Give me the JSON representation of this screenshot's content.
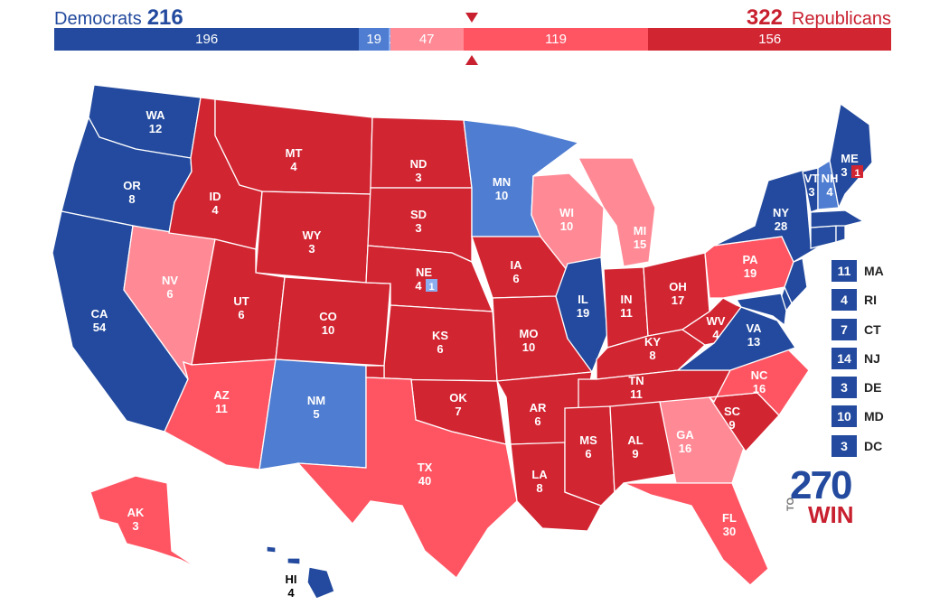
{
  "colors": {
    "safe_dem": "#234a9e",
    "likely_dem": "#4f7dd1",
    "lean_dem": "#8caeee",
    "lean_rep": "#ff8a96",
    "likely_rep": "#ff5563",
    "safe_rep": "#d22532"
  },
  "header": {
    "dem_label": "Democrats",
    "dem_total": "216",
    "rep_total": "322",
    "rep_label": "Republicans"
  },
  "bar": [
    {
      "label": "196",
      "value": 196,
      "rating": "safe_dem"
    },
    {
      "label": "19",
      "value": 19,
      "rating": "likely_dem"
    },
    {
      "label": "1",
      "value": 1,
      "rating": "lean_dem"
    },
    {
      "label": "47",
      "value": 47,
      "rating": "lean_rep"
    },
    {
      "label": "119",
      "value": 119,
      "rating": "likely_rep"
    },
    {
      "label": "156",
      "value": 156,
      "rating": "safe_rep"
    }
  ],
  "states": {
    "WA": {
      "abbr": "WA",
      "ev": "12",
      "rating": "safe_dem"
    },
    "OR": {
      "abbr": "OR",
      "ev": "8",
      "rating": "safe_dem"
    },
    "CA": {
      "abbr": "CA",
      "ev": "54",
      "rating": "safe_dem"
    },
    "NV": {
      "abbr": "NV",
      "ev": "6",
      "rating": "lean_rep"
    },
    "ID": {
      "abbr": "ID",
      "ev": "4",
      "rating": "safe_rep"
    },
    "MT": {
      "abbr": "MT",
      "ev": "4",
      "rating": "safe_rep"
    },
    "WY": {
      "abbr": "WY",
      "ev": "3",
      "rating": "safe_rep"
    },
    "UT": {
      "abbr": "UT",
      "ev": "6",
      "rating": "safe_rep"
    },
    "AZ": {
      "abbr": "AZ",
      "ev": "11",
      "rating": "likely_rep"
    },
    "CO": {
      "abbr": "CO",
      "ev": "10",
      "rating": "safe_rep"
    },
    "NM": {
      "abbr": "NM",
      "ev": "5",
      "rating": "likely_dem"
    },
    "ND": {
      "abbr": "ND",
      "ev": "3",
      "rating": "safe_rep"
    },
    "SD": {
      "abbr": "SD",
      "ev": "3",
      "rating": "safe_rep"
    },
    "NE": {
      "abbr": "NE",
      "ev": "4",
      "rating": "safe_rep",
      "district": "1"
    },
    "KS": {
      "abbr": "KS",
      "ev": "6",
      "rating": "safe_rep"
    },
    "OK": {
      "abbr": "OK",
      "ev": "7",
      "rating": "safe_rep"
    },
    "TX": {
      "abbr": "TX",
      "ev": "40",
      "rating": "likely_rep"
    },
    "MN": {
      "abbr": "MN",
      "ev": "10",
      "rating": "likely_dem"
    },
    "IA": {
      "abbr": "IA",
      "ev": "6",
      "rating": "safe_rep"
    },
    "MO": {
      "abbr": "MO",
      "ev": "10",
      "rating": "safe_rep"
    },
    "AR": {
      "abbr": "AR",
      "ev": "6",
      "rating": "safe_rep"
    },
    "LA": {
      "abbr": "LA",
      "ev": "8",
      "rating": "safe_rep"
    },
    "WI": {
      "abbr": "WI",
      "ev": "10",
      "rating": "lean_rep"
    },
    "IL": {
      "abbr": "IL",
      "ev": "19",
      "rating": "safe_dem"
    },
    "MI": {
      "abbr": "MI",
      "ev": "15",
      "rating": "lean_rep"
    },
    "IN": {
      "abbr": "IN",
      "ev": "11",
      "rating": "safe_rep"
    },
    "OH": {
      "abbr": "OH",
      "ev": "17",
      "rating": "safe_rep"
    },
    "KY": {
      "abbr": "KY",
      "ev": "8",
      "rating": "safe_rep"
    },
    "TN": {
      "abbr": "TN",
      "ev": "11",
      "rating": "safe_rep"
    },
    "MS": {
      "abbr": "MS",
      "ev": "6",
      "rating": "safe_rep"
    },
    "AL": {
      "abbr": "AL",
      "ev": "9",
      "rating": "safe_rep"
    },
    "GA": {
      "abbr": "GA",
      "ev": "16",
      "rating": "lean_rep"
    },
    "FL": {
      "abbr": "FL",
      "ev": "30",
      "rating": "likely_rep"
    },
    "SC": {
      "abbr": "SC",
      "ev": "9",
      "rating": "safe_rep"
    },
    "NC": {
      "abbr": "NC",
      "ev": "16",
      "rating": "likely_rep"
    },
    "VA": {
      "abbr": "VA",
      "ev": "13",
      "rating": "safe_dem"
    },
    "WV": {
      "abbr": "WV",
      "ev": "4",
      "rating": "safe_rep"
    },
    "PA": {
      "abbr": "PA",
      "ev": "19",
      "rating": "likely_rep"
    },
    "NY": {
      "abbr": "NY",
      "ev": "28",
      "rating": "safe_dem"
    },
    "VT": {
      "abbr": "VT",
      "ev": "3",
      "rating": "safe_dem"
    },
    "NH": {
      "abbr": "NH",
      "ev": "4",
      "rating": "likely_dem"
    },
    "ME": {
      "abbr": "ME",
      "ev": "3",
      "rating": "safe_dem",
      "district": "1"
    },
    "AK": {
      "abbr": "AK",
      "ev": "3",
      "rating": "likely_rep"
    },
    "HI": {
      "abbr": "HI",
      "ev": "4",
      "rating": "safe_dem"
    }
  },
  "small_states": [
    {
      "abbr": "MA",
      "ev": "11",
      "rating": "safe_dem"
    },
    {
      "abbr": "RI",
      "ev": "4",
      "rating": "safe_dem"
    },
    {
      "abbr": "CT",
      "ev": "7",
      "rating": "safe_dem"
    },
    {
      "abbr": "NJ",
      "ev": "14",
      "rating": "safe_dem"
    },
    {
      "abbr": "DE",
      "ev": "3",
      "rating": "safe_dem"
    },
    {
      "abbr": "MD",
      "ev": "10",
      "rating": "safe_dem"
    },
    {
      "abbr": "DC",
      "ev": "3",
      "rating": "safe_dem"
    }
  ],
  "logo": {
    "number": "270",
    "to": "TO",
    "win": "WIN"
  }
}
